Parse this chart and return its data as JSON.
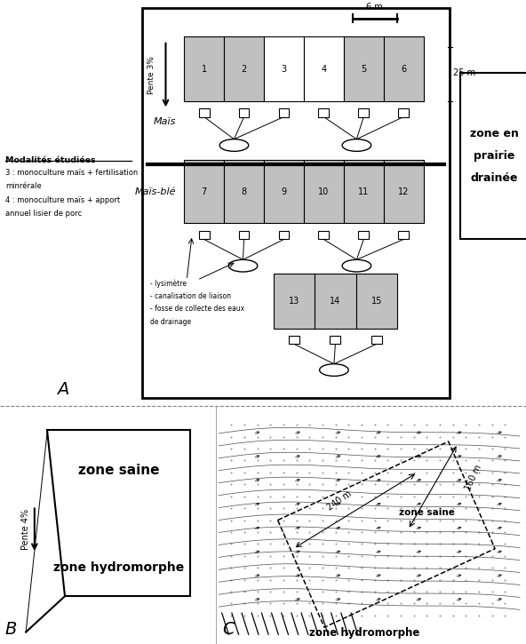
{
  "bg_color": "#ffffff",
  "gray_cell": "#c0c0c0",
  "white_cell": "#ffffff",
  "black": "#000000",
  "panel_A": {
    "modalites_title": "Modalités étudiées",
    "modalites_lines": [
      "3 : monoculture maïs + fertilisation",
      "minrérale",
      "4 : monoculture maïs + apport",
      "annuel lisier de porc"
    ],
    "pente": "Pente 3%",
    "scale": "6 m",
    "dim25": "25 m",
    "mais": "Maïs",
    "mais_ble": "Maïs-blé",
    "row1_nums": [
      1,
      2,
      3,
      4,
      5,
      6
    ],
    "row1_gray": [
      1,
      1,
      0,
      0,
      1,
      1
    ],
    "row2_nums": [
      7,
      8,
      9,
      10,
      11,
      12
    ],
    "row2_gray": [
      1,
      1,
      1,
      1,
      1,
      1
    ],
    "row3_nums": [
      13,
      14,
      15
    ],
    "row3_gray": [
      1,
      1,
      1
    ],
    "legend": [
      "- lysimètre",
      "- canalisation de liaison",
      "- fosse de collecte des eaux",
      "de drainage"
    ],
    "prairie": [
      "zone en",
      "prairie",
      "drainée"
    ],
    "label": "A"
  },
  "panel_B": {
    "zone_saine": "zone saine",
    "zone_hydro": "zone hydromorphe",
    "pente": "Pente 4%",
    "label": "B"
  },
  "panel_C": {
    "dim1": "240 m",
    "dim2": "160 m",
    "zone_saine": "zone saine",
    "zone_hydro": "zone hydromorphe",
    "label": "C"
  }
}
